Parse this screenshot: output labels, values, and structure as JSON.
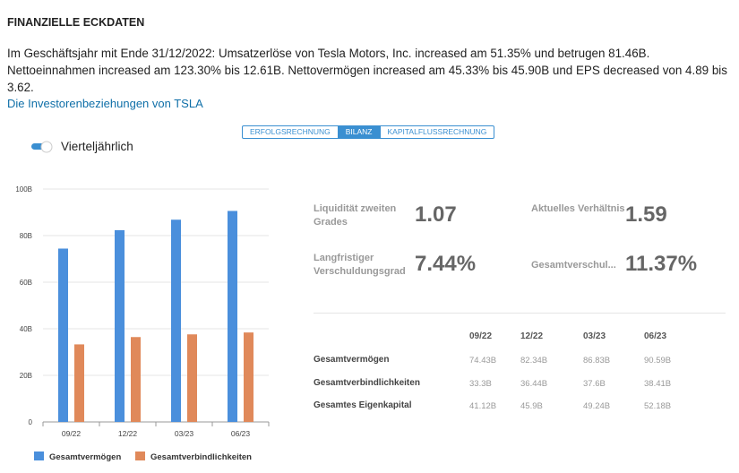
{
  "header": {
    "title": "FINANZIELLE ECKDATEN"
  },
  "summary": "Im Geschäftsjahr mit Ende 31/12/2022: Umsatzerlöse von Tesla Motors, Inc. increased am 51.35% und betrugen 81.46B. Nettoeinnahmen increased am 123.30% bis 12.61B. Nettovermögen increased am 45.33% bis 45.90B und EPS decreased von 4.89 bis 3.62.",
  "link": "Die Investorenbeziehungen von TSLA",
  "tabs": [
    "ERFOLGSRECHNUNG",
    "BILANZ",
    "KAPITALFLUSSRECHNUNG"
  ],
  "toggle_label": "Vierteljährlich",
  "chart_data": {
    "type": "bar",
    "categories": [
      "09/22",
      "12/22",
      "03/23",
      "06/23"
    ],
    "series": [
      {
        "name": "Gesamtvermögen",
        "color": "#4a8fdc",
        "values": [
          74.43,
          82.34,
          86.83,
          90.59
        ]
      },
      {
        "name": "Gesamtverbindlichkeiten",
        "color": "#e0895a",
        "values": [
          33.3,
          36.44,
          37.6,
          38.41
        ]
      }
    ],
    "ylim": [
      0,
      100
    ],
    "yticks": [
      0,
      {
        "value": 20,
        "label": "20B"
      },
      {
        "value": 40,
        "label": "40B"
      },
      {
        "value": 60,
        "label": "60B"
      },
      {
        "value": 80,
        "label": "80B"
      },
      {
        "value": 100,
        "label": "100B"
      }
    ],
    "grid": true
  },
  "ratios": [
    {
      "label": "Liquidität zweiten Grades",
      "value": "1.07"
    },
    {
      "label": "Aktuelles Verhältnis",
      "value": "1.59"
    },
    {
      "label": "Langfristiger Verschuldungsgrad",
      "value": "7.44%"
    },
    {
      "label": "Gesamtverschul...",
      "value": "11.37%"
    }
  ],
  "table": {
    "columns": [
      "09/22",
      "12/22",
      "03/23",
      "06/23"
    ],
    "rows": [
      [
        "Gesamtvermögen",
        "74.43B",
        "82.34B",
        "86.83B",
        "90.59B"
      ],
      [
        "Gesamtverbindlichkeiten",
        "33.3B",
        "36.44B",
        "37.6B",
        "38.41B"
      ],
      [
        "Gesamtes Eigenkapital",
        "41.12B",
        "45.9B",
        "49.24B",
        "52.18B"
      ]
    ]
  }
}
